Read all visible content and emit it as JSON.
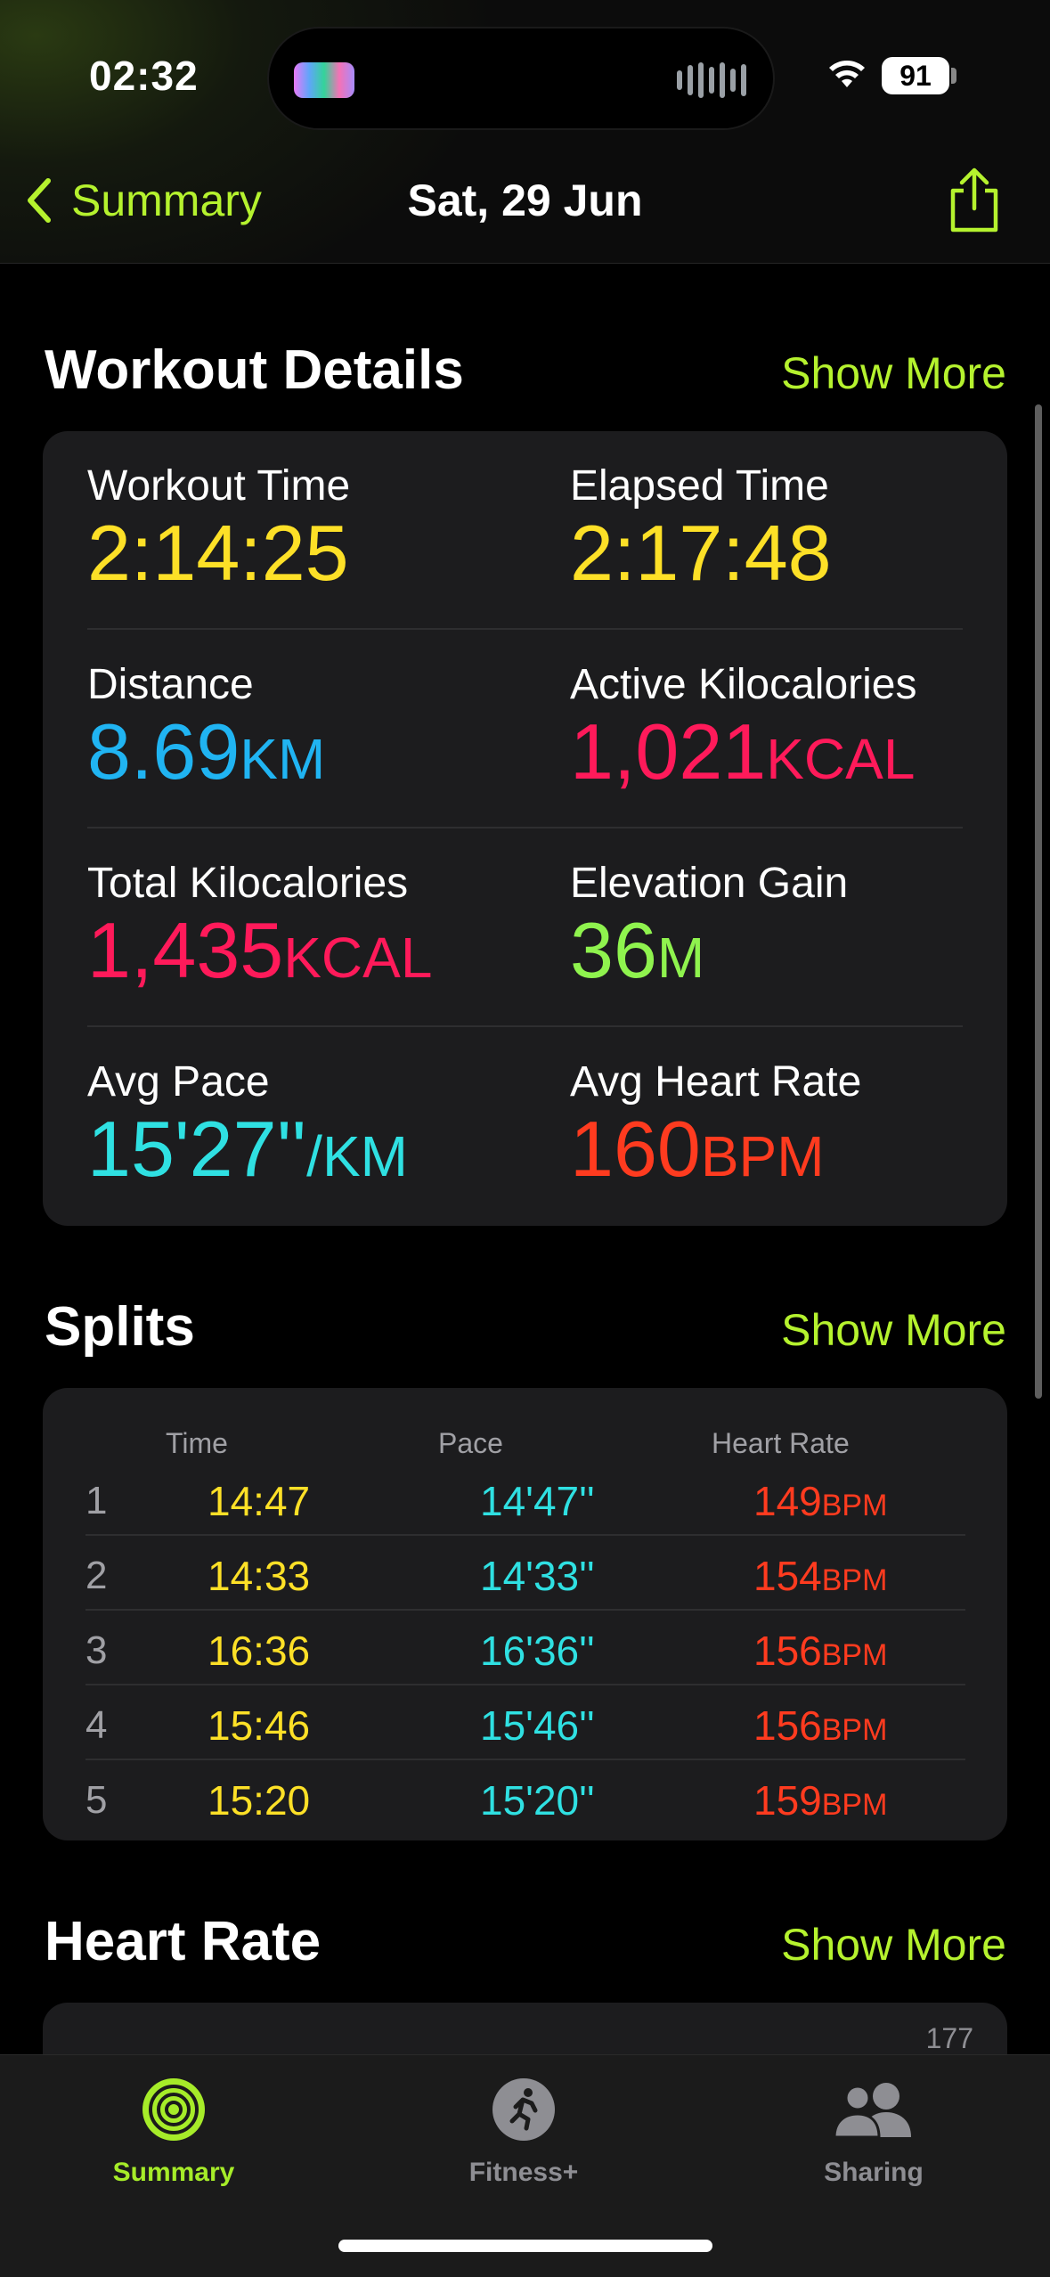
{
  "status": {
    "time": "02:32",
    "battery": "91"
  },
  "nav": {
    "back_label": "Summary",
    "title": "Sat, 29 Jun"
  },
  "workout_details": {
    "title": "Workout Details",
    "show_more": "Show More",
    "metrics": [
      {
        "label": "Workout Time",
        "value": "2:14:25",
        "unit": "",
        "color": "#fde027"
      },
      {
        "label": "Elapsed Time",
        "value": "2:17:48",
        "unit": "",
        "color": "#fde027"
      },
      {
        "label": "Distance",
        "value": "8.69",
        "unit": "KM",
        "color": "#20b4f2"
      },
      {
        "label": "Active Kilocalories",
        "value": "1,021",
        "unit": "KCAL",
        "color": "#ff1a5a"
      },
      {
        "label": "Total Kilocalories",
        "value": "1,435",
        "unit": "KCAL",
        "color": "#ff1a5a"
      },
      {
        "label": "Elevation Gain",
        "value": "36",
        "unit": "M",
        "color": "#8ff34e"
      },
      {
        "label": "Avg Pace",
        "value": "15'27''",
        "unit": "/KM",
        "color": "#2fe0e2"
      },
      {
        "label": "Avg Heart Rate",
        "value": "160",
        "unit": "BPM",
        "color": "#ff3b1f"
      }
    ]
  },
  "splits": {
    "title": "Splits",
    "show_more": "Show More",
    "columns": {
      "time": "Time",
      "pace": "Pace",
      "heart_rate": "Heart Rate"
    },
    "rows": [
      {
        "num": "1",
        "time": "14:47",
        "pace": "14'47''",
        "hr": "149",
        "hr_unit": "BPM"
      },
      {
        "num": "2",
        "time": "14:33",
        "pace": "14'33''",
        "hr": "154",
        "hr_unit": "BPM"
      },
      {
        "num": "3",
        "time": "16:36",
        "pace": "16'36''",
        "hr": "156",
        "hr_unit": "BPM"
      },
      {
        "num": "4",
        "time": "15:46",
        "pace": "15'46''",
        "hr": "156",
        "hr_unit": "BPM"
      },
      {
        "num": "5",
        "time": "15:20",
        "pace": "15'20''",
        "hr": "159",
        "hr_unit": "BPM"
      }
    ]
  },
  "heart_rate": {
    "title": "Heart Rate",
    "show_more": "Show More",
    "axis_max": "177"
  },
  "tabs": [
    {
      "label": "Summary",
      "active": true
    },
    {
      "label": "Fitness+",
      "active": false
    },
    {
      "label": "Sharing",
      "active": false
    }
  ],
  "colors": {
    "accent": "#b5f22e",
    "yellow": "#fde027",
    "blue": "#20b4f2",
    "pink": "#ff1a5a",
    "green": "#8ff34e",
    "cyan": "#2fe0e2",
    "red": "#ff3b1f"
  }
}
